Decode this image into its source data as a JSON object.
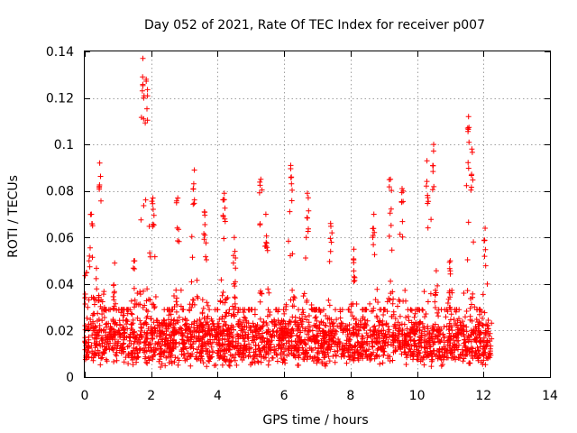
{
  "chart_data": {
    "type": "scatter",
    "title": "Day 052 of 2021, Rate Of TEC Index for receiver p007",
    "xlabel": "GPS time / hours",
    "ylabel": "ROTI / TECUs",
    "xlim": [
      0,
      14
    ],
    "ylim": [
      0,
      0.14
    ],
    "x_ticks": [
      0,
      2,
      4,
      6,
      8,
      10,
      12,
      14
    ],
    "y_ticks": [
      0,
      0.02,
      0.04,
      0.06,
      0.08,
      0.1,
      0.12,
      0.14
    ],
    "x_tick_labels": [
      "0",
      "2",
      "4",
      "6",
      "8",
      "10",
      "12",
      "14"
    ],
    "y_tick_labels": [
      "0",
      "0.02",
      "0.04",
      "0.06",
      "0.08",
      "0.1",
      "0.12",
      "0.14"
    ],
    "grid": true,
    "marker": "plus",
    "marker_color": "#ff0000",
    "series": [
      {
        "name": "p007",
        "x_range": [
          0,
          12.25
        ],
        "baseline": 0.012,
        "peaks": [
          {
            "x": 0.05,
            "y": 0.045
          },
          {
            "x": 0.2,
            "y": 0.07
          },
          {
            "x": 0.45,
            "y": 0.092
          },
          {
            "x": 0.9,
            "y": 0.049
          },
          {
            "x": 1.5,
            "y": 0.05
          },
          {
            "x": 1.75,
            "y": 0.137
          },
          {
            "x": 1.85,
            "y": 0.128
          },
          {
            "x": 2.05,
            "y": 0.077
          },
          {
            "x": 2.8,
            "y": 0.077
          },
          {
            "x": 3.3,
            "y": 0.089
          },
          {
            "x": 3.6,
            "y": 0.071
          },
          {
            "x": 4.2,
            "y": 0.079
          },
          {
            "x": 4.5,
            "y": 0.06
          },
          {
            "x": 5.3,
            "y": 0.085
          },
          {
            "x": 5.45,
            "y": 0.07
          },
          {
            "x": 6.2,
            "y": 0.091
          },
          {
            "x": 6.7,
            "y": 0.079
          },
          {
            "x": 7.4,
            "y": 0.066
          },
          {
            "x": 8.1,
            "y": 0.055
          },
          {
            "x": 8.7,
            "y": 0.07
          },
          {
            "x": 9.2,
            "y": 0.085
          },
          {
            "x": 9.55,
            "y": 0.081
          },
          {
            "x": 10.3,
            "y": 0.093
          },
          {
            "x": 10.5,
            "y": 0.1
          },
          {
            "x": 11.0,
            "y": 0.05
          },
          {
            "x": 11.55,
            "y": 0.112
          },
          {
            "x": 11.65,
            "y": 0.098
          },
          {
            "x": 12.05,
            "y": 0.064
          }
        ]
      }
    ]
  }
}
